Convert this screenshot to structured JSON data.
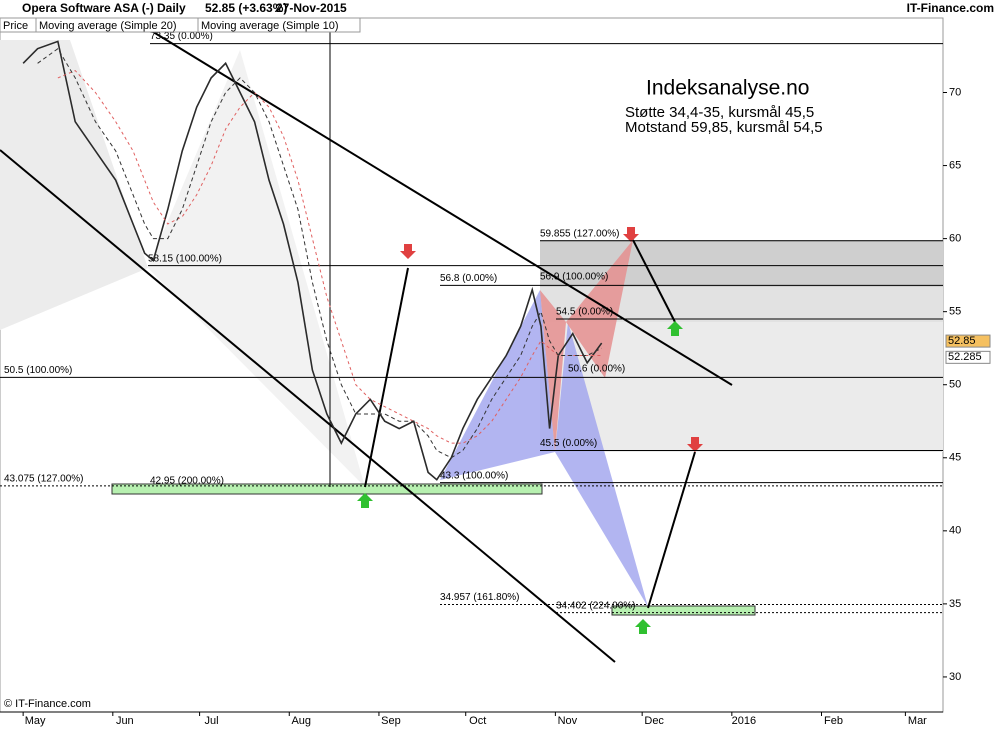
{
  "chart_data": {
    "type": "line",
    "title": "Opera Software ASA (-)",
    "period": "Daily",
    "change": "52.85 (+3.63%)",
    "date": "27-Nov-2015",
    "source": "IT-Finance.com",
    "copyright": "© IT-Finance.com",
    "overlay": {
      "heading": "Indeksanalyse.no",
      "lines": [
        "Støtte 34,4-35, kursmål 45,5",
        "Motstand 59,85, kursmål 54,5"
      ]
    },
    "x": [
      0,
      5,
      12,
      18,
      25,
      32,
      38,
      42,
      45,
      50,
      55,
      60,
      65,
      70,
      75,
      80,
      85,
      90,
      95,
      100,
      105,
      110,
      115,
      120,
      125,
      130,
      135,
      140,
      143,
      148,
      152,
      157,
      162,
      167,
      172,
      176,
      179,
      182,
      185,
      190,
      195,
      200
    ],
    "series": [
      {
        "name": "Price",
        "color": "#2b2b2b",
        "values": [
          72,
          73,
          73.5,
          68,
          66,
          64,
          61,
          59,
          58.5,
          62,
          66,
          69,
          71,
          72,
          70,
          68,
          64,
          61,
          57,
          51,
          48,
          46,
          48,
          49,
          47.5,
          47,
          47.5,
          44,
          43.5,
          45,
          47,
          49,
          50.5,
          52,
          54,
          56.5,
          54,
          47,
          52,
          53.5,
          51.5,
          52.85
        ]
      },
      {
        "name": "Moving average (Simple 20)",
        "color": "#e06060",
        "values": [
          null,
          null,
          71,
          71.5,
          70,
          68,
          66,
          64,
          62.5,
          61,
          61.5,
          63,
          65,
          67.5,
          69,
          70,
          69,
          67,
          64,
          60,
          56,
          53,
          50,
          49,
          48.5,
          48,
          47.5,
          47,
          46.5,
          46,
          46,
          46.5,
          47.5,
          49,
          50.5,
          52,
          53,
          52.5,
          52,
          52,
          52,
          52
        ]
      },
      {
        "name": "Moving average (Simple 10)",
        "color": "#333333",
        "values": [
          null,
          72,
          73,
          71,
          68,
          66,
          63,
          61,
          60,
          60,
          62,
          65,
          68,
          70,
          71,
          70,
          68,
          65,
          62,
          57,
          53,
          50,
          48,
          48,
          48,
          47.5,
          47.5,
          46.5,
          45.5,
          45,
          45.5,
          47,
          49,
          50.5,
          52,
          54,
          55,
          53,
          52,
          52,
          52,
          52.5
        ]
      }
    ],
    "levels": [
      {
        "value": 73.35,
        "label": "73.35 (0.00%)"
      },
      {
        "value": 58.15,
        "label": "58.15 (100.00%)"
      },
      {
        "value": 56.8,
        "label": "56.8 (0.00%)"
      },
      {
        "value": 56.9,
        "label": "56.9 (100.00%)"
      },
      {
        "value": 59.855,
        "label": "59.855 (127.00%)"
      },
      {
        "value": 54.5,
        "label": "54.5 (0.00%)"
      },
      {
        "value": 50.5,
        "label": "50.5 (100.00%)"
      },
      {
        "value": 50.6,
        "label": "50.6 (0.00%)"
      },
      {
        "value": 45.5,
        "label": "45.5 (0.00%)"
      },
      {
        "value": 43.3,
        "label": "43.3 (100.00%)"
      },
      {
        "value": 43.075,
        "label": "43.075 (127.00%)"
      },
      {
        "value": 42.95,
        "label": "42.95 (200.00%)"
      },
      {
        "value": 34.957,
        "label": "34.957 (161.80%)"
      },
      {
        "value": 34.402,
        "label": "34.402 (224.00%)"
      }
    ],
    "price_tags": [
      52.85,
      52.285
    ],
    "xlim": [
      -8,
      318
    ],
    "xticks": [
      {
        "value": 0,
        "label": "May"
      },
      {
        "value": 31,
        "label": "Jun"
      },
      {
        "value": 61,
        "label": "Jul"
      },
      {
        "value": 92,
        "label": "Aug"
      },
      {
        "value": 123,
        "label": "Sep"
      },
      {
        "value": 153,
        "label": "Oct"
      },
      {
        "value": 184,
        "label": "Nov"
      },
      {
        "value": 214,
        "label": "Dec"
      },
      {
        "value": 245,
        "label": "2016"
      },
      {
        "value": 276,
        "label": "Feb"
      },
      {
        "value": 305,
        "label": "Mar"
      }
    ],
    "ylim": [
      27.6,
      75.1
    ],
    "yticks": [
      30,
      35,
      40,
      45,
      50,
      55,
      60,
      65,
      70
    ]
  }
}
